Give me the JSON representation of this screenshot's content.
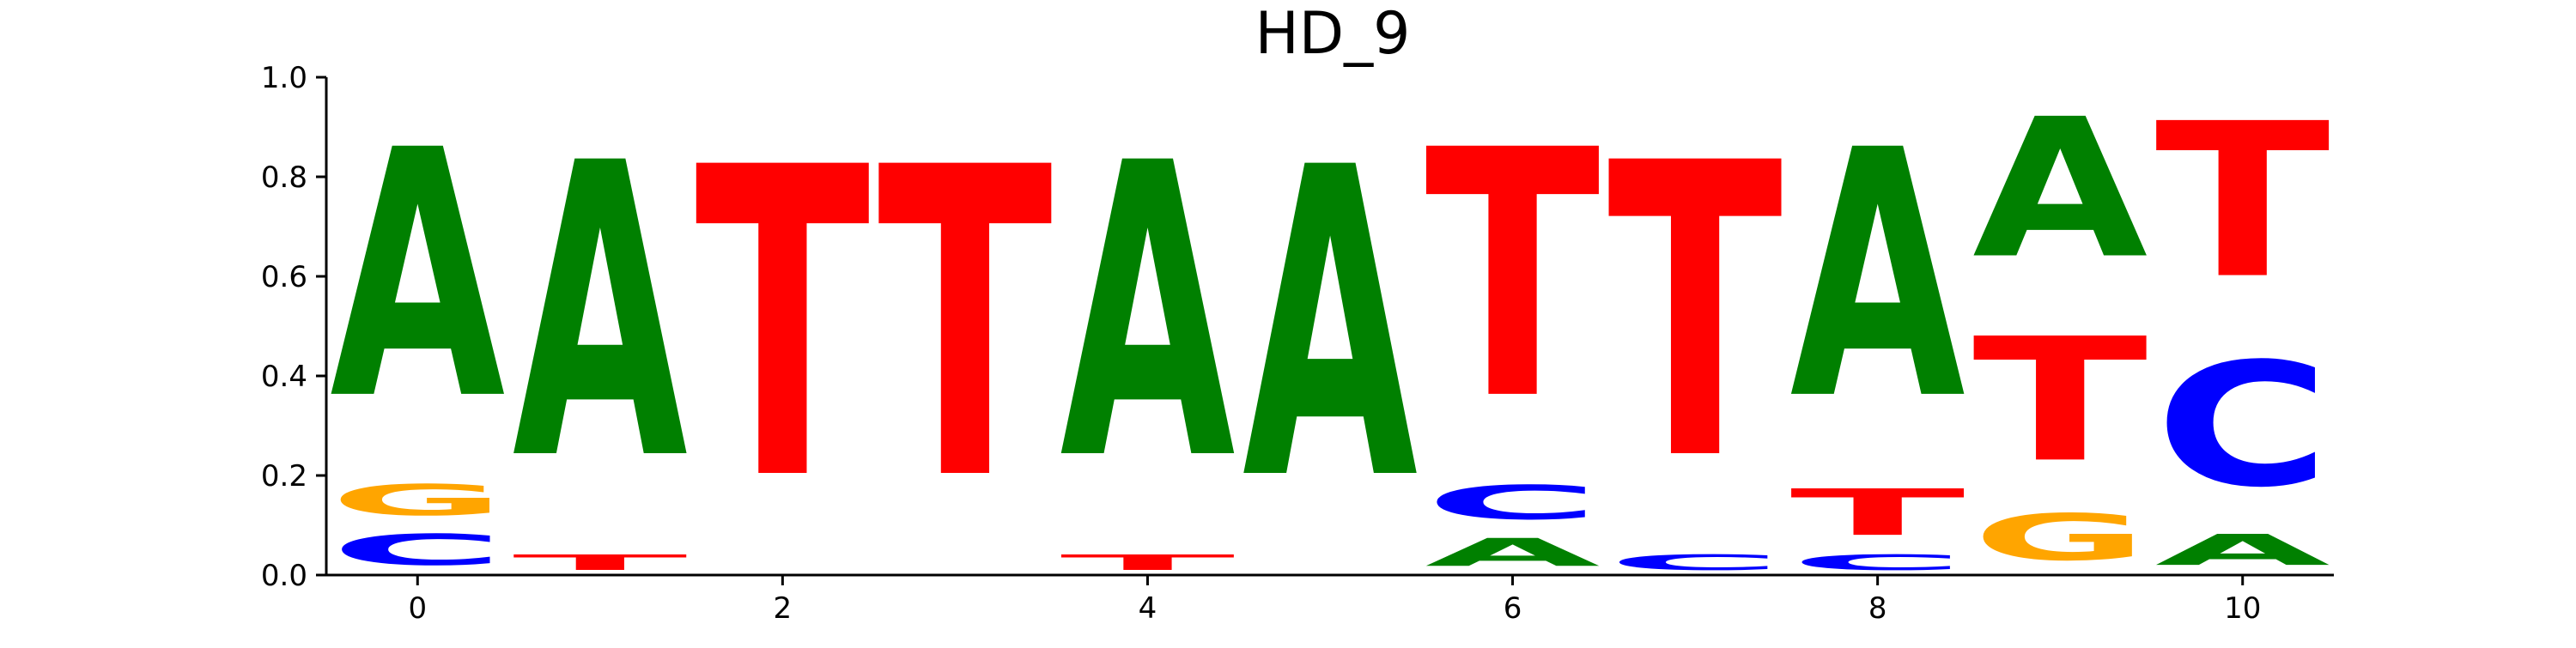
{
  "chart_data": {
    "type": "sequence-logo",
    "title": "HD_9",
    "xlabel": "",
    "ylabel": "",
    "ylim": [
      0,
      1
    ],
    "xlim": [
      -0.5,
      10.5
    ],
    "x_ticks": [
      0,
      2,
      4,
      6,
      8,
      10
    ],
    "y_ticks": [
      0.0,
      0.2,
      0.4,
      0.6,
      0.8,
      1.0
    ],
    "y_tick_labels": [
      "0.0",
      "0.2",
      "0.4",
      "0.6",
      "0.8",
      "1.0"
    ],
    "x_tick_labels": [
      "0",
      "2",
      "4",
      "6",
      "8",
      "10"
    ],
    "grid": false,
    "letter_colors": {
      "A": "#008000",
      "C": "#0000ff",
      "G": "#ffa500",
      "T": "#ff0000"
    },
    "positions": [
      {
        "x": 0,
        "stack": [
          {
            "letter": "C",
            "height": 0.1
          },
          {
            "letter": "G",
            "height": 0.1
          },
          {
            "letter": "A",
            "height": 0.8
          }
        ]
      },
      {
        "x": 1,
        "stack": [
          {
            "letter": "T",
            "height": 0.05
          },
          {
            "letter": "A",
            "height": 0.95
          }
        ]
      },
      {
        "x": 2,
        "stack": [
          {
            "letter": "T",
            "height": 1.0
          }
        ]
      },
      {
        "x": 3,
        "stack": [
          {
            "letter": "T",
            "height": 1.0
          }
        ]
      },
      {
        "x": 4,
        "stack": [
          {
            "letter": "T",
            "height": 0.05
          },
          {
            "letter": "A",
            "height": 0.95
          }
        ]
      },
      {
        "x": 5,
        "stack": [
          {
            "letter": "A",
            "height": 1.0
          }
        ]
      },
      {
        "x": 6,
        "stack": [
          {
            "letter": "A",
            "height": 0.09
          },
          {
            "letter": "C",
            "height": 0.11
          },
          {
            "letter": "T",
            "height": 0.8
          }
        ]
      },
      {
        "x": 7,
        "stack": [
          {
            "letter": "C",
            "height": 0.05
          },
          {
            "letter": "T",
            "height": 0.95
          }
        ]
      },
      {
        "x": 8,
        "stack": [
          {
            "letter": "C",
            "height": 0.05
          },
          {
            "letter": "T",
            "height": 0.15
          },
          {
            "letter": "A",
            "height": 0.8
          }
        ]
      },
      {
        "x": 9,
        "stack": [
          {
            "letter": "G",
            "height": 0.15
          },
          {
            "letter": "T",
            "height": 0.4
          },
          {
            "letter": "A",
            "height": 0.45
          }
        ]
      },
      {
        "x": 10,
        "stack": [
          {
            "letter": "A",
            "height": 0.1
          },
          {
            "letter": "C",
            "height": 0.4
          },
          {
            "letter": "T",
            "height": 0.5
          }
        ]
      }
    ]
  }
}
